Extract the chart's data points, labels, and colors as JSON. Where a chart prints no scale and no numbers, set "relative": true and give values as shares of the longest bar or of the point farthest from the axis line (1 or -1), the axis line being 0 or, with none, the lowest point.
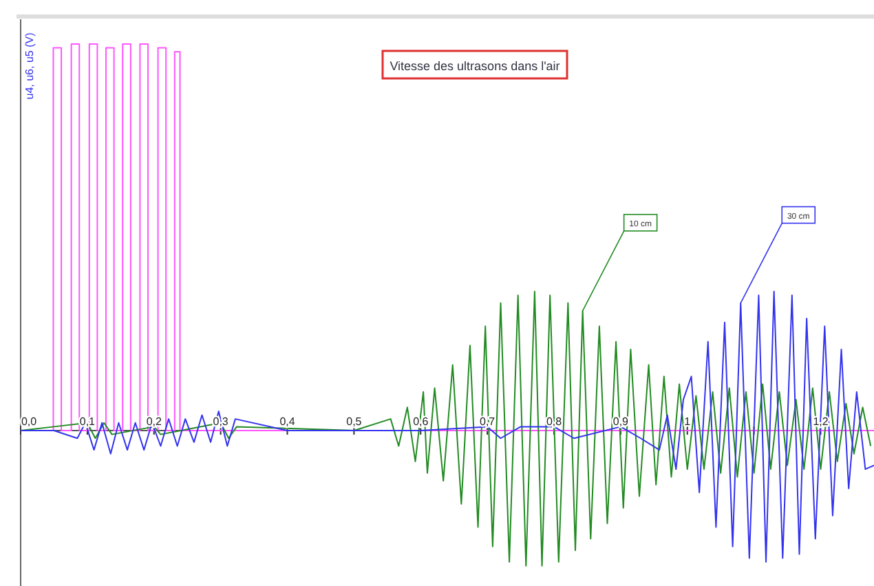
{
  "chart_data": {
    "type": "line",
    "title": "Vitesse des ultrasons dans l'air",
    "ylabel": "u4, u6, u5 (V)",
    "relative": true,
    "xlim": [
      0,
      1.28
    ],
    "xticks": [
      {
        "value": 0,
        "label": "0,0"
      },
      {
        "value": 0.1,
        "label": "0,1"
      },
      {
        "value": 0.2,
        "label": "0,2"
      },
      {
        "value": 0.3,
        "label": "0,3"
      },
      {
        "value": 0.4,
        "label": "0,4"
      },
      {
        "value": 0.5,
        "label": "0,5"
      },
      {
        "value": 0.6,
        "label": "0,6"
      },
      {
        "value": 0.7,
        "label": "0,7"
      },
      {
        "value": 0.8,
        "label": "0,8"
      },
      {
        "value": 0.9,
        "label": "0,9"
      },
      {
        "value": 1,
        "label": "1"
      },
      {
        "value": 1.1,
        "label": null
      },
      {
        "value": 1.2,
        "label": "1,2"
      }
    ],
    "annotations": [
      {
        "text": "10 cm",
        "x": 0.843,
        "y": 0.31
      },
      {
        "text": "30 cm",
        "x": 1.08,
        "y": 0.33
      }
    ],
    "series": [
      {
        "color": "#ff55ff",
        "x": [
          0,
          0.049,
          0.049,
          0.061,
          0.061,
          0.076,
          0.076,
          0.088,
          0.088,
          0.103,
          0.103,
          0.115,
          0.115,
          0.128,
          0.128,
          0.14,
          0.14,
          0.153,
          0.153,
          0.165,
          0.165,
          0.179,
          0.179,
          0.191,
          0.191,
          0.206,
          0.206,
          0.218,
          0.218,
          0.231,
          0.231,
          0.239,
          0.239,
          1.28
        ],
        "values": [
          0,
          0,
          0.99,
          0.99,
          0,
          0,
          1,
          1,
          0,
          0,
          1,
          1,
          0,
          0,
          0.99,
          0.99,
          0,
          0,
          1,
          1,
          0,
          0,
          1,
          1,
          0,
          0,
          0.99,
          0.99,
          0,
          0,
          0.98,
          0.98,
          0,
          0
        ]
      },
      {
        "color": "#228b22",
        "x": [
          0,
          0.05,
          0.1,
          0.112,
          0.125,
          0.137,
          0.2,
          0.21,
          0.3,
          0.312,
          0.324,
          0.5,
          0.555,
          0.567,
          0.58,
          0.592,
          0.604,
          0.61,
          0.621,
          0.634,
          0.648,
          0.661,
          0.674,
          0.686,
          0.697,
          0.708,
          0.72,
          0.733,
          0.746,
          0.758,
          0.771,
          0.782,
          0.794,
          0.807,
          0.821,
          0.832,
          0.843,
          0.855,
          0.868,
          0.88,
          0.893,
          0.904,
          0.915,
          0.928,
          0.942,
          0.953,
          0.965,
          0.976,
          0.988,
          1.0,
          1.013,
          1.025,
          1.038,
          1.05,
          1.063,
          1.075,
          1.088,
          1.1,
          1.113,
          1.125,
          1.138,
          1.15,
          1.163,
          1.175,
          1.188,
          1.2,
          1.213,
          1.225,
          1.238,
          1.25,
          1.263,
          1.275
        ],
        "values": [
          0,
          0.01,
          0.02,
          -0.02,
          0.02,
          -0.01,
          0.01,
          -0.01,
          0.02,
          -0.02,
          0.01,
          0,
          0.03,
          -0.04,
          0.06,
          -0.08,
          0.1,
          -0.11,
          0.11,
          -0.13,
          0.17,
          -0.19,
          0.22,
          -0.25,
          0.27,
          -0.3,
          0.33,
          -0.34,
          0.35,
          -0.35,
          0.36,
          -0.35,
          0.35,
          -0.34,
          0.33,
          -0.31,
          0.31,
          -0.28,
          0.27,
          -0.24,
          0.23,
          -0.2,
          0.21,
          -0.17,
          0.17,
          -0.14,
          0.14,
          -0.12,
          0.12,
          -0.1,
          0.09,
          -0.1,
          0.1,
          -0.11,
          0.11,
          -0.12,
          0.1,
          -0.11,
          0.12,
          -0.1,
          0.1,
          -0.09,
          0.08,
          -0.1,
          0.11,
          -0.1,
          0.1,
          -0.08,
          0.07,
          -0.06,
          0.06,
          -0.04
        ]
      },
      {
        "color": "#3333ee",
        "x": [
          0,
          0.05,
          0.085,
          0.097,
          0.11,
          0.122,
          0.135,
          0.147,
          0.16,
          0.172,
          0.185,
          0.197,
          0.21,
          0.222,
          0.235,
          0.247,
          0.26,
          0.272,
          0.285,
          0.297,
          0.31,
          0.322,
          0.4,
          0.5,
          0.6,
          0.7,
          0.72,
          0.75,
          0.8,
          0.83,
          0.9,
          0.93,
          0.958,
          0.97,
          0.983,
          0.994,
          1.006,
          1.018,
          1.031,
          1.043,
          1.056,
          1.068,
          1.08,
          1.093,
          1.107,
          1.118,
          1.13,
          1.143,
          1.157,
          1.168,
          1.179,
          1.192,
          1.206,
          1.218,
          1.231,
          1.242,
          1.254,
          1.267,
          1.28
        ],
        "values": [
          0,
          0,
          -0.02,
          0.02,
          -0.05,
          0.02,
          -0.06,
          0.02,
          -0.05,
          0.02,
          -0.05,
          0.02,
          -0.04,
          0.03,
          -0.04,
          0.03,
          -0.03,
          0.04,
          -0.03,
          0.05,
          -0.04,
          0.03,
          0,
          0,
          0,
          0.01,
          -0.02,
          0.01,
          0.01,
          -0.02,
          0.01,
          -0.02,
          -0.05,
          0.04,
          -0.1,
          0.08,
          0.14,
          -0.16,
          0.23,
          -0.25,
          0.28,
          -0.3,
          0.33,
          -0.33,
          0.35,
          -0.34,
          0.36,
          -0.33,
          0.35,
          -0.32,
          0.29,
          -0.28,
          0.27,
          -0.22,
          0.21,
          -0.15,
          0.1,
          -0.1,
          -0.09
        ]
      }
    ]
  }
}
